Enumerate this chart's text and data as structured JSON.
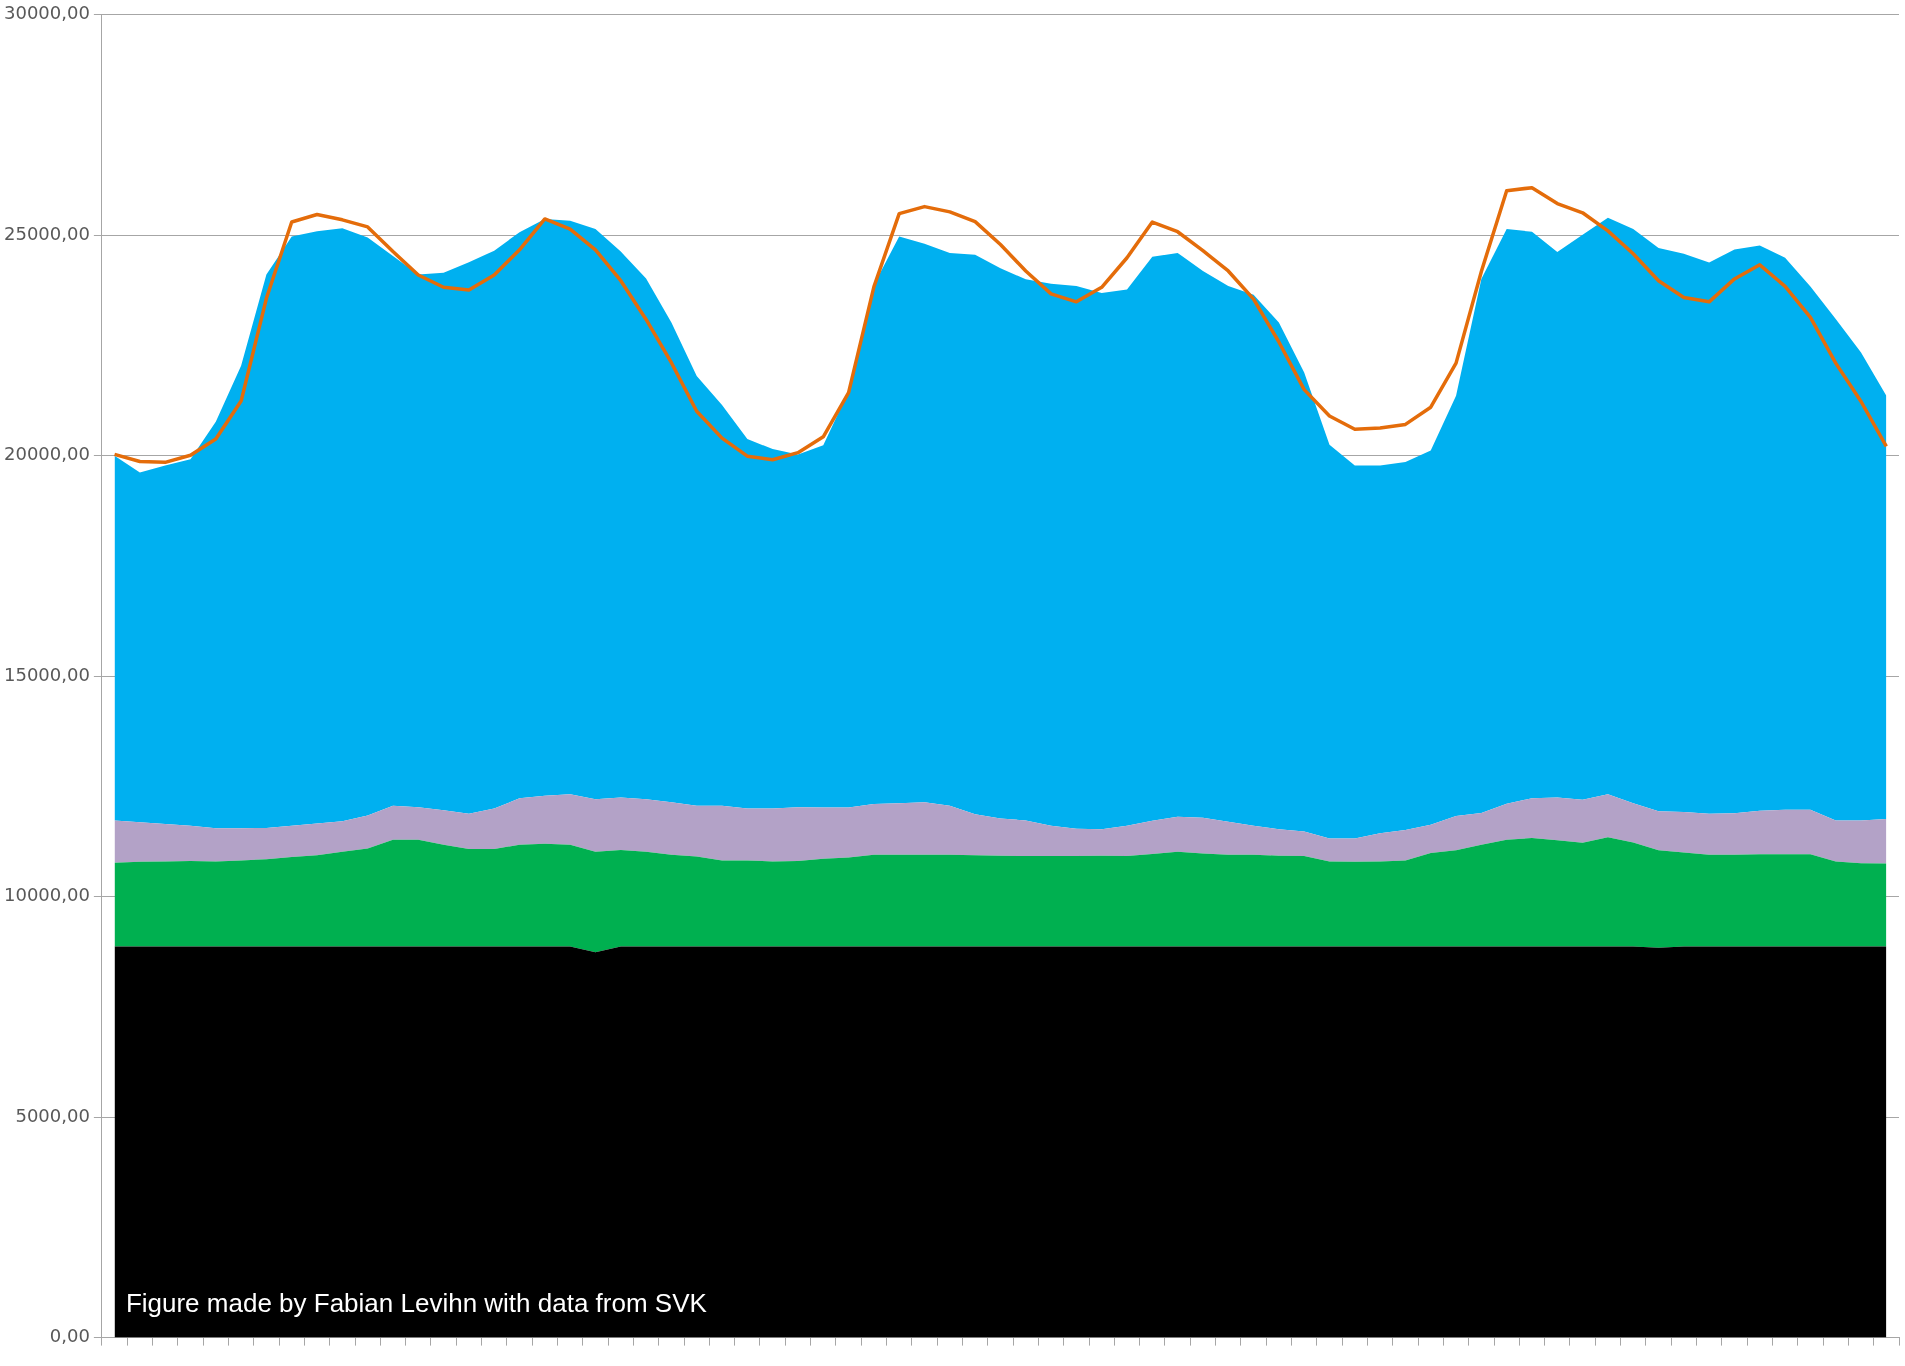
{
  "chart_data": {
    "type": "area",
    "stacked": true,
    "grid": "y",
    "marker": "none",
    "categories": [
      null,
      null,
      null,
      null,
      null,
      null,
      null,
      null,
      null,
      null,
      null,
      null,
      null,
      null,
      null,
      null,
      null,
      null,
      null,
      null,
      null,
      null,
      null,
      null,
      null,
      null,
      null,
      null,
      null,
      null,
      null,
      null,
      null,
      null,
      null,
      null,
      null,
      null,
      null,
      null,
      null,
      null,
      null,
      null,
      null,
      null,
      null,
      null,
      null,
      null,
      null,
      null,
      null,
      null,
      null,
      null,
      null,
      null,
      null,
      null,
      null,
      null,
      null,
      null,
      null,
      null,
      null,
      null,
      null,
      null,
      null
    ],
    "ylim": [
      0,
      30000
    ],
    "yticks": [
      {
        "value": 0,
        "label": "0,00"
      },
      {
        "value": 5000,
        "label": "5000,00"
      },
      {
        "value": 10000,
        "label": "10000,00"
      },
      {
        "value": 15000,
        "label": "15000,00"
      },
      {
        "value": 20000,
        "label": "20000,00"
      },
      {
        "value": 25000,
        "label": "25000,00"
      },
      {
        "value": 30000,
        "label": "30000,00"
      }
    ],
    "series": [
      {
        "color": "#000000",
        "values": [
          8870,
          8870,
          8870,
          8870,
          8870,
          8870,
          8870,
          8870,
          8870,
          8870,
          8870,
          8870,
          8870,
          8870,
          8870,
          8870,
          8870,
          8870,
          8870,
          8740,
          8870,
          8870,
          8870,
          8870,
          8870,
          8870,
          8870,
          8870,
          8870,
          8870,
          8870,
          8870,
          8870,
          8870,
          8870,
          8870,
          8870,
          8870,
          8870,
          8870,
          8870,
          8870,
          8870,
          8870,
          8870,
          8870,
          8870,
          8870,
          8870,
          8870,
          8870,
          8870,
          8870,
          8870,
          8870,
          8870,
          8870,
          8870,
          8870,
          8870,
          8870,
          8840,
          8870,
          8870,
          8870,
          8870,
          8870,
          8870,
          8870,
          8870,
          8870
        ]
      },
      {
        "color": "#00b050",
        "values": [
          1900,
          1920,
          1930,
          1940,
          1930,
          1950,
          1980,
          2030,
          2070,
          2150,
          2220,
          2420,
          2420,
          2310,
          2210,
          2210,
          2310,
          2330,
          2310,
          2280,
          2190,
          2150,
          2080,
          2040,
          1950,
          1950,
          1930,
          1940,
          1990,
          2020,
          2080,
          2080,
          2080,
          2080,
          2070,
          2060,
          2050,
          2050,
          2050,
          2060,
          2050,
          2100,
          2150,
          2110,
          2080,
          2080,
          2060,
          2050,
          1930,
          1920,
          1930,
          1950,
          2120,
          2180,
          2310,
          2420,
          2460,
          2410,
          2350,
          2480,
          2360,
          2210,
          2130,
          2080,
          2080,
          2090,
          2090,
          2090,
          1930,
          1890,
          1880
        ]
      },
      {
        "color": "#b3a2c7",
        "values": [
          960,
          900,
          850,
          800,
          750,
          730,
          710,
          710,
          720,
          690,
          750,
          770,
          740,
          780,
          800,
          920,
          1050,
          1090,
          1140,
          1190,
          1190,
          1190,
          1190,
          1150,
          1240,
          1180,
          1200,
          1220,
          1160,
          1130,
          1150,
          1170,
          1190,
          1110,
          930,
          840,
          810,
          690,
          620,
          600,
          690,
          750,
          790,
          810,
          750,
          660,
          600,
          560,
          520,
          530,
          640,
          690,
          640,
          780,
          720,
          820,
          900,
          970,
          980,
          970,
          890,
          890,
          920,
          930,
          940,
          990,
          1010,
          1010,
          930,
          970,
          1010
        ]
      },
      {
        "color": "#00b0f0",
        "values": [
          8270,
          7930,
          8130,
          8310,
          9220,
          10490,
          12550,
          13360,
          13430,
          13450,
          13110,
          12470,
          12080,
          12190,
          12510,
          12650,
          12840,
          13080,
          13010,
          12930,
          12380,
          11810,
          10880,
          9750,
          9090,
          8380,
          8150,
          8000,
          8220,
          9440,
          11780,
          12850,
          12670,
          12540,
          12690,
          12480,
          12270,
          12290,
          12310,
          12160,
          12160,
          12790,
          12790,
          12400,
          12150,
          12040,
          11490,
          10410,
          8930,
          8460,
          8340,
          8350,
          8490,
          9530,
          12110,
          13030,
          12850,
          12370,
          12810,
          13080,
          13020,
          12770,
          12660,
          12500,
          12790,
          12820,
          12520,
          11870,
          11370,
          10610,
          9600
        ]
      },
      {
        "type": "line",
        "color": "#e46c0a",
        "values": [
          20030,
          19870,
          19850,
          20010,
          20380,
          21240,
          23570,
          25300,
          25470,
          25350,
          25190,
          24630,
          24100,
          23820,
          23760,
          24100,
          24670,
          25370,
          25140,
          24670,
          23970,
          23090,
          22110,
          21010,
          20400,
          19990,
          19910,
          20070,
          20430,
          21430,
          23830,
          25490,
          25650,
          25530,
          25310,
          24790,
          24190,
          23670,
          23490,
          23820,
          24490,
          25300,
          25080,
          24650,
          24190,
          23550,
          22580,
          21500,
          20900,
          20600,
          20630,
          20710,
          21100,
          22100,
          24180,
          26010,
          26080,
          25720,
          25510,
          25100,
          24580,
          23970,
          23590,
          23490,
          24010,
          24330,
          23840,
          23140,
          22100,
          21230,
          20210
        ]
      }
    ],
    "annotations": [
      "Figure made by Fabian Levihn with data from SVK"
    ]
  }
}
